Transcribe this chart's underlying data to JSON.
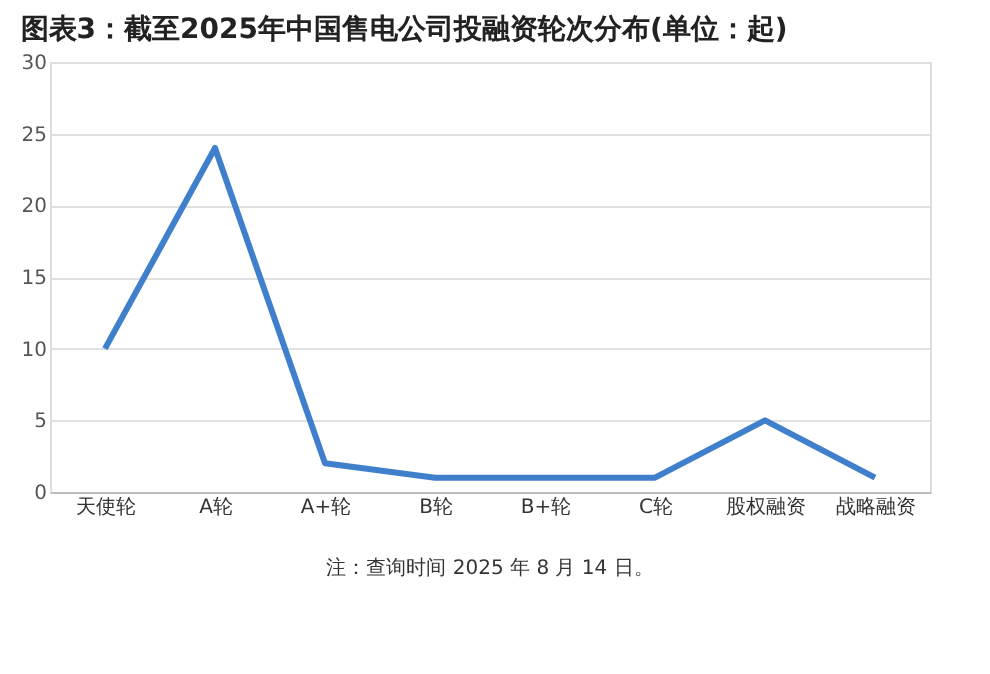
{
  "chart_data": {
    "type": "line",
    "title": "图表3：截至2025年中国售电公司投融资轮次分布(单位：起)",
    "categories": [
      "天使轮",
      "A轮",
      "A+轮",
      "B轮",
      "B+轮",
      "C轮",
      "股权融资",
      "战略融资"
    ],
    "series": [
      {
        "color": "#3f7fcc",
        "values": [
          10,
          24,
          2,
          1,
          1,
          1,
          5,
          1
        ]
      }
    ],
    "ylim": [
      0,
      30
    ],
    "yticks": [
      0,
      5,
      10,
      15,
      20,
      25,
      30
    ],
    "grid": "y",
    "marker": "none",
    "line_style": "solid",
    "annotations": [
      "注：查询时间 2025 年 8 月 14 日。"
    ]
  }
}
